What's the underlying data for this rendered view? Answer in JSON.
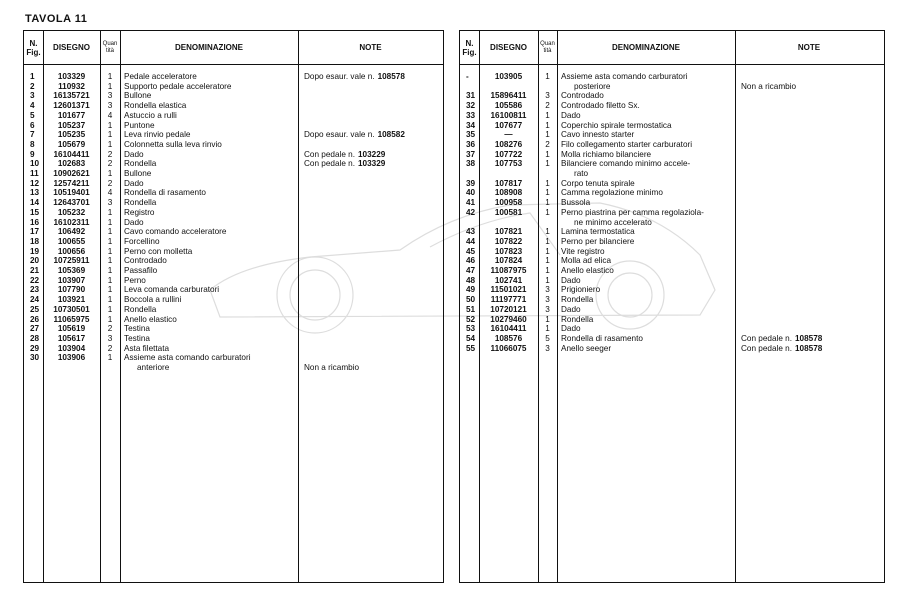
{
  "title": "TAVOLA  11",
  "headers": {
    "fig": "N. Fig.",
    "disegno": "DISEGNO",
    "qty": "Quan tità",
    "denominazione": "DENOMINAZIONE",
    "note": "NOTE"
  },
  "left_rows": [
    {
      "fig": "1",
      "dis": "103329",
      "qty": "1",
      "den": [
        "Pedale acceleratore"
      ],
      "note": "Dopo esaur. vale n.",
      "note_num": "108578"
    },
    {
      "fig": "2",
      "dis": "110932",
      "qty": "1",
      "den": [
        "Supporto pedale acceleratore"
      ]
    },
    {
      "fig": "3",
      "dis": "16135721",
      "qty": "3",
      "den": [
        "Bullone"
      ]
    },
    {
      "fig": "4",
      "dis": "12601371",
      "qty": "3",
      "den": [
        "Rondella elastica"
      ]
    },
    {
      "fig": "5",
      "dis": "101677",
      "qty": "4",
      "den": [
        "Astuccio a rulli"
      ]
    },
    {
      "fig": "6",
      "dis": "105237",
      "qty": "1",
      "den": [
        "Puntone"
      ]
    },
    {
      "fig": "7",
      "dis": "105235",
      "qty": "1",
      "den": [
        "Leva rinvio pedale"
      ],
      "note": "Dopo esaur. vale n.",
      "note_num": "108582"
    },
    {
      "fig": "8",
      "dis": "105679",
      "qty": "1",
      "den": [
        "Colonnetta sulla leva rinvio"
      ]
    },
    {
      "fig": "9",
      "dis": "16104411",
      "qty": "2",
      "den": [
        "Dado"
      ],
      "note": "Con pedale n.",
      "note_num": "103229"
    },
    {
      "fig": "10",
      "dis": "102683",
      "qty": "2",
      "den": [
        "Rondella"
      ],
      "note": "Con pedale n.",
      "note_num": "103329"
    },
    {
      "fig": "11",
      "dis": "10902621",
      "qty": "1",
      "den": [
        "Bullone"
      ]
    },
    {
      "fig": "12",
      "dis": "12574211",
      "qty": "2",
      "den": [
        "Dado"
      ]
    },
    {
      "fig": "13",
      "dis": "10519401",
      "qty": "4",
      "den": [
        "Rondella di rasamento"
      ]
    },
    {
      "fig": "14",
      "dis": "12643701",
      "qty": "3",
      "den": [
        "Rondella"
      ]
    },
    {
      "fig": "15",
      "dis": "105232",
      "qty": "1",
      "den": [
        "Registro"
      ]
    },
    {
      "fig": "16",
      "dis": "16102311",
      "qty": "1",
      "den": [
        "Dado"
      ]
    },
    {
      "fig": "17",
      "dis": "106492",
      "qty": "1",
      "den": [
        "Cavo comando acceleratore"
      ]
    },
    {
      "fig": "18",
      "dis": "100655",
      "qty": "1",
      "den": [
        "Forcellino"
      ]
    },
    {
      "fig": "19",
      "dis": "100656",
      "qty": "1",
      "den": [
        "Perno con molletta"
      ]
    },
    {
      "fig": "20",
      "dis": "10725911",
      "qty": "1",
      "den": [
        "Controdado"
      ]
    },
    {
      "fig": "21",
      "dis": "105369",
      "qty": "1",
      "den": [
        "Passafilo"
      ]
    },
    {
      "fig": "22",
      "dis": "103907",
      "qty": "1",
      "den": [
        "Perno"
      ]
    },
    {
      "fig": "23",
      "dis": "107790",
      "qty": "1",
      "den": [
        "Leva comanda carburatori"
      ]
    },
    {
      "fig": "24",
      "dis": "103921",
      "qty": "1",
      "den": [
        "Boccola a rullini"
      ]
    },
    {
      "fig": "25",
      "dis": "10730501",
      "qty": "1",
      "den": [
        "Rondella"
      ]
    },
    {
      "fig": "26",
      "dis": "11065975",
      "qty": "1",
      "den": [
        "Anello elastico"
      ]
    },
    {
      "fig": "27",
      "dis": "105619",
      "qty": "2",
      "den": [
        "Testina"
      ]
    },
    {
      "fig": "28",
      "dis": "105617",
      "qty": "3",
      "den": [
        "Testina"
      ]
    },
    {
      "fig": "29",
      "dis": "103904",
      "qty": "2",
      "den": [
        "Asta filettata"
      ]
    },
    {
      "fig": "30",
      "dis": "103906",
      "qty": "1",
      "den": [
        "Assieme asta comando carburatori",
        "anteriore"
      ],
      "note": "Non a ricambio"
    }
  ],
  "right_rows": [
    {
      "fig": "-",
      "dis": "103905",
      "qty": "1",
      "den": [
        "Assieme asta comando carburatori",
        "posteriore"
      ],
      "note": "Non a ricambio"
    },
    {
      "fig": "31",
      "dis": "15896411",
      "qty": "3",
      "den": [
        "Controdado"
      ]
    },
    {
      "fig": "32",
      "dis": "105586",
      "qty": "2",
      "den": [
        "Controdado filetto Sx."
      ]
    },
    {
      "fig": "33",
      "dis": "16100811",
      "qty": "1",
      "den": [
        "Dado"
      ]
    },
    {
      "fig": "34",
      "dis": "107677",
      "qty": "1",
      "den": [
        "Coperchio spirale termostatica"
      ]
    },
    {
      "fig": "35",
      "dis": "—",
      "qty": "1",
      "den": [
        "Cavo innesto starter"
      ]
    },
    {
      "fig": "36",
      "dis": "108276",
      "qty": "2",
      "den": [
        "Filo collegamento starter carburatori"
      ]
    },
    {
      "fig": "37",
      "dis": "107722",
      "qty": "1",
      "den": [
        "Molla richiamo bilanciere"
      ]
    },
    {
      "fig": "38",
      "dis": "107753",
      "qty": "1",
      "den": [
        "Bilanciere comando minimo accele-",
        "rato"
      ]
    },
    {
      "fig": "39",
      "dis": "107817",
      "qty": "1",
      "den": [
        "Corpo tenuta spirale"
      ]
    },
    {
      "fig": "40",
      "dis": "108908",
      "qty": "1",
      "den": [
        "Camma regolazione minimo"
      ]
    },
    {
      "fig": "41",
      "dis": "100958",
      "qty": "1",
      "den": [
        "Bussola"
      ]
    },
    {
      "fig": "42",
      "dis": "100581",
      "qty": "1",
      "den": [
        "Perno piastrina per camma regolaziola-",
        "ne minimo accelerato"
      ]
    },
    {
      "fig": "43",
      "dis": "107821",
      "qty": "1",
      "den": [
        "Lamina termostatica"
      ]
    },
    {
      "fig": "44",
      "dis": "107822",
      "qty": "1",
      "den": [
        "Perno per bilanciere"
      ]
    },
    {
      "fig": "45",
      "dis": "107823",
      "qty": "1",
      "den": [
        "Vite registro"
      ]
    },
    {
      "fig": "46",
      "dis": "107824",
      "qty": "1",
      "den": [
        "Molla ad elica"
      ]
    },
    {
      "fig": "47",
      "dis": "11087975",
      "qty": "1",
      "den": [
        "Anello elastico"
      ]
    },
    {
      "fig": "48",
      "dis": "102741",
      "qty": "1",
      "den": [
        "Dado"
      ]
    },
    {
      "fig": "49",
      "dis": "11501021",
      "qty": "3",
      "den": [
        "Prigioniero"
      ]
    },
    {
      "fig": "50",
      "dis": "11197771",
      "qty": "3",
      "den": [
        "Rondella"
      ]
    },
    {
      "fig": "51",
      "dis": "10720121",
      "qty": "3",
      "den": [
        "Dado"
      ]
    },
    {
      "fig": "52",
      "dis": "10279460",
      "qty": "1",
      "den": [
        "Rondella"
      ]
    },
    {
      "fig": "53",
      "dis": "16104411",
      "qty": "1",
      "den": [
        "Dado"
      ]
    },
    {
      "fig": "54",
      "dis": "108576",
      "qty": "5",
      "den": [
        "Rondella di rasamento"
      ],
      "note": "Con pedale n.",
      "note_num": "108578"
    },
    {
      "fig": "55",
      "dis": "11066075",
      "qty": "3",
      "den": [
        "Anello seeger"
      ],
      "note": "Con pedale n.",
      "note_num": "108578"
    }
  ]
}
